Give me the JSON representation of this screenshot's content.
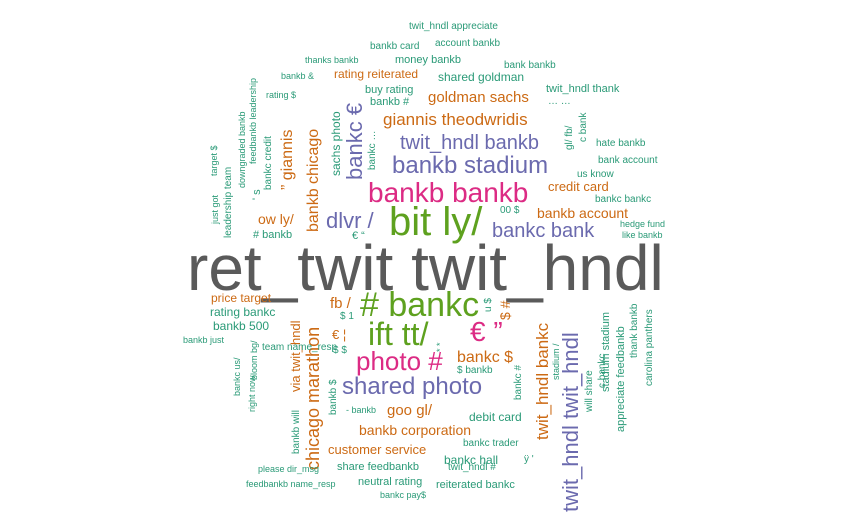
{
  "palette": {
    "grey": "#5a5a5a",
    "green": "#5ea11f",
    "pink": "#dc2b84",
    "purple": "#6b6aae",
    "orange": "#cc6a14",
    "teal": "#2a9a77"
  },
  "words": [
    {
      "text": "ret_twit twit_hndl",
      "color": "grey"
    },
    {
      "text": "bit ly/",
      "color": "green"
    },
    {
      "text": "# bankc",
      "color": "green"
    },
    {
      "text": "ift tt/",
      "color": "green"
    },
    {
      "text": "bankb bankb",
      "color": "pink"
    },
    {
      "text": "photo #",
      "color": "pink"
    },
    {
      "text": "€ ”",
      "color": "pink"
    },
    {
      "text": "bankb stadium",
      "color": "purple"
    },
    {
      "text": "shared photo",
      "color": "purple"
    },
    {
      "text": "twit_hndl bankb",
      "color": "purple"
    },
    {
      "text": "bankc bank",
      "color": "purple"
    },
    {
      "text": "dlvr /",
      "color": "purple"
    },
    {
      "text": "bankc €",
      "color": "purple"
    },
    {
      "text": "twit_hndl twit_hndl",
      "color": "purple"
    },
    {
      "text": "giannis theodwridis",
      "color": "orange"
    },
    {
      "text": "goldman sachs",
      "color": "orange"
    },
    {
      "text": "bankb chicago",
      "color": "orange"
    },
    {
      "text": "chicago marathon",
      "color": "orange"
    },
    {
      "text": "” giannis",
      "color": "orange"
    },
    {
      "text": "bankc $",
      "color": "orange"
    },
    {
      "text": "twit_hndl bankc",
      "color": "orange"
    },
    {
      "text": "bankb account",
      "color": "orange"
    },
    {
      "text": "credit card",
      "color": "orange"
    },
    {
      "text": "ow ly/",
      "color": "orange"
    },
    {
      "text": "fb /",
      "color": "orange"
    },
    {
      "text": "$ #",
      "color": "orange"
    },
    {
      "text": "goo gl/",
      "color": "orange"
    },
    {
      "text": "bankb corporation",
      "color": "orange"
    },
    {
      "text": "customer service",
      "color": "orange"
    },
    {
      "text": "via twit_hndl",
      "color": "orange"
    },
    {
      "text": "price target",
      "color": "orange"
    },
    {
      "text": "rating reiterated",
      "color": "orange"
    },
    {
      "text": "€ ¦",
      "color": "orange"
    },
    {
      "text": "twit_hndl appreciate",
      "color": "teal"
    },
    {
      "text": "bankb card",
      "color": "teal"
    },
    {
      "text": "account bankb",
      "color": "teal"
    },
    {
      "text": "thanks bankb",
      "color": "teal"
    },
    {
      "text": "money bankb",
      "color": "teal"
    },
    {
      "text": "bank bankb",
      "color": "teal"
    },
    {
      "text": "bankb &",
      "color": "teal"
    },
    {
      "text": "shared goldman",
      "color": "teal"
    },
    {
      "text": "twit_hndl thank",
      "color": "teal"
    },
    {
      "text": "buy rating",
      "color": "teal"
    },
    {
      "text": "bankb #",
      "color": "teal"
    },
    {
      "text": "… …",
      "color": "teal"
    },
    {
      "text": "rating $",
      "color": "teal"
    },
    {
      "text": "hate bankb",
      "color": "teal"
    },
    {
      "text": "bank account",
      "color": "teal"
    },
    {
      "text": "us know",
      "color": "teal"
    },
    {
      "text": "bankc bankc",
      "color": "teal"
    },
    {
      "text": "hedge fund",
      "color": "teal"
    },
    {
      "text": "like bankb",
      "color": "teal"
    },
    {
      "text": "00 $",
      "color": "teal"
    },
    {
      "text": "# bankb",
      "color": "teal"
    },
    {
      "text": "€ “",
      "color": "teal"
    },
    {
      "text": "rating bankc",
      "color": "teal"
    },
    {
      "text": "bankb 500",
      "color": "teal"
    },
    {
      "text": "bankb just",
      "color": "teal"
    },
    {
      "text": "team name_resp",
      "color": "teal"
    },
    {
      "text": "$ 1",
      "color": "teal"
    },
    {
      "text": "$ $",
      "color": "teal"
    },
    {
      "text": "$ bankb",
      "color": "teal"
    },
    {
      "text": "debit card",
      "color": "teal"
    },
    {
      "text": "bankc trader",
      "color": "teal"
    },
    {
      "text": "bankc hall",
      "color": "teal"
    },
    {
      "text": "twit_hndl #",
      "color": "teal"
    },
    {
      "text": "ÿ '",
      "color": "teal"
    },
    {
      "text": "share feedbankb",
      "color": "teal"
    },
    {
      "text": "please dir_msg",
      "color": "teal"
    },
    {
      "text": "neutral rating",
      "color": "teal"
    },
    {
      "text": "reiterated bankc",
      "color": "teal"
    },
    {
      "text": "feedbankb name_resp",
      "color": "teal"
    },
    {
      "text": "bankc pay$",
      "color": "teal"
    },
    {
      "text": "- bankb",
      "color": "teal"
    },
    {
      "text": "sachs photo",
      "color": "teal"
    },
    {
      "text": "bankc …",
      "color": "teal"
    },
    {
      "text": "gl/ fb/",
      "color": "teal"
    },
    {
      "text": "c bank",
      "color": "teal"
    },
    {
      "text": "u $",
      "color": "teal"
    },
    {
      "text": "bankc credit",
      "color": "teal"
    },
    {
      "text": "' s",
      "color": "teal"
    },
    {
      "text": "downgraded bankb",
      "color": "teal"
    },
    {
      "text": "feedbankb leadership",
      "color": "teal"
    },
    {
      "text": "leadership team",
      "color": "teal"
    },
    {
      "text": "target $",
      "color": "teal"
    },
    {
      "text": "just got",
      "color": "teal"
    },
    {
      "text": "will share",
      "color": "teal"
    },
    {
      "text": "c bankc",
      "color": "teal"
    },
    {
      "text": "stadium stadium",
      "color": "teal"
    },
    {
      "text": "appreciate feedbankb",
      "color": "teal"
    },
    {
      "text": "thank bankb",
      "color": "teal"
    },
    {
      "text": "carolina panthers",
      "color": "teal"
    },
    {
      "text": "bankc #",
      "color": "teal"
    },
    {
      "text": "stadium /",
      "color": "teal"
    },
    {
      "text": "* *",
      "color": "teal"
    },
    {
      "text": "bankc us/",
      "color": "teal"
    },
    {
      "text": "right now",
      "color": "teal"
    },
    {
      "text": "bloom bg/",
      "color": "teal"
    },
    {
      "text": "bankb will",
      "color": "teal"
    },
    {
      "text": "bankb $",
      "color": "teal"
    }
  ]
}
